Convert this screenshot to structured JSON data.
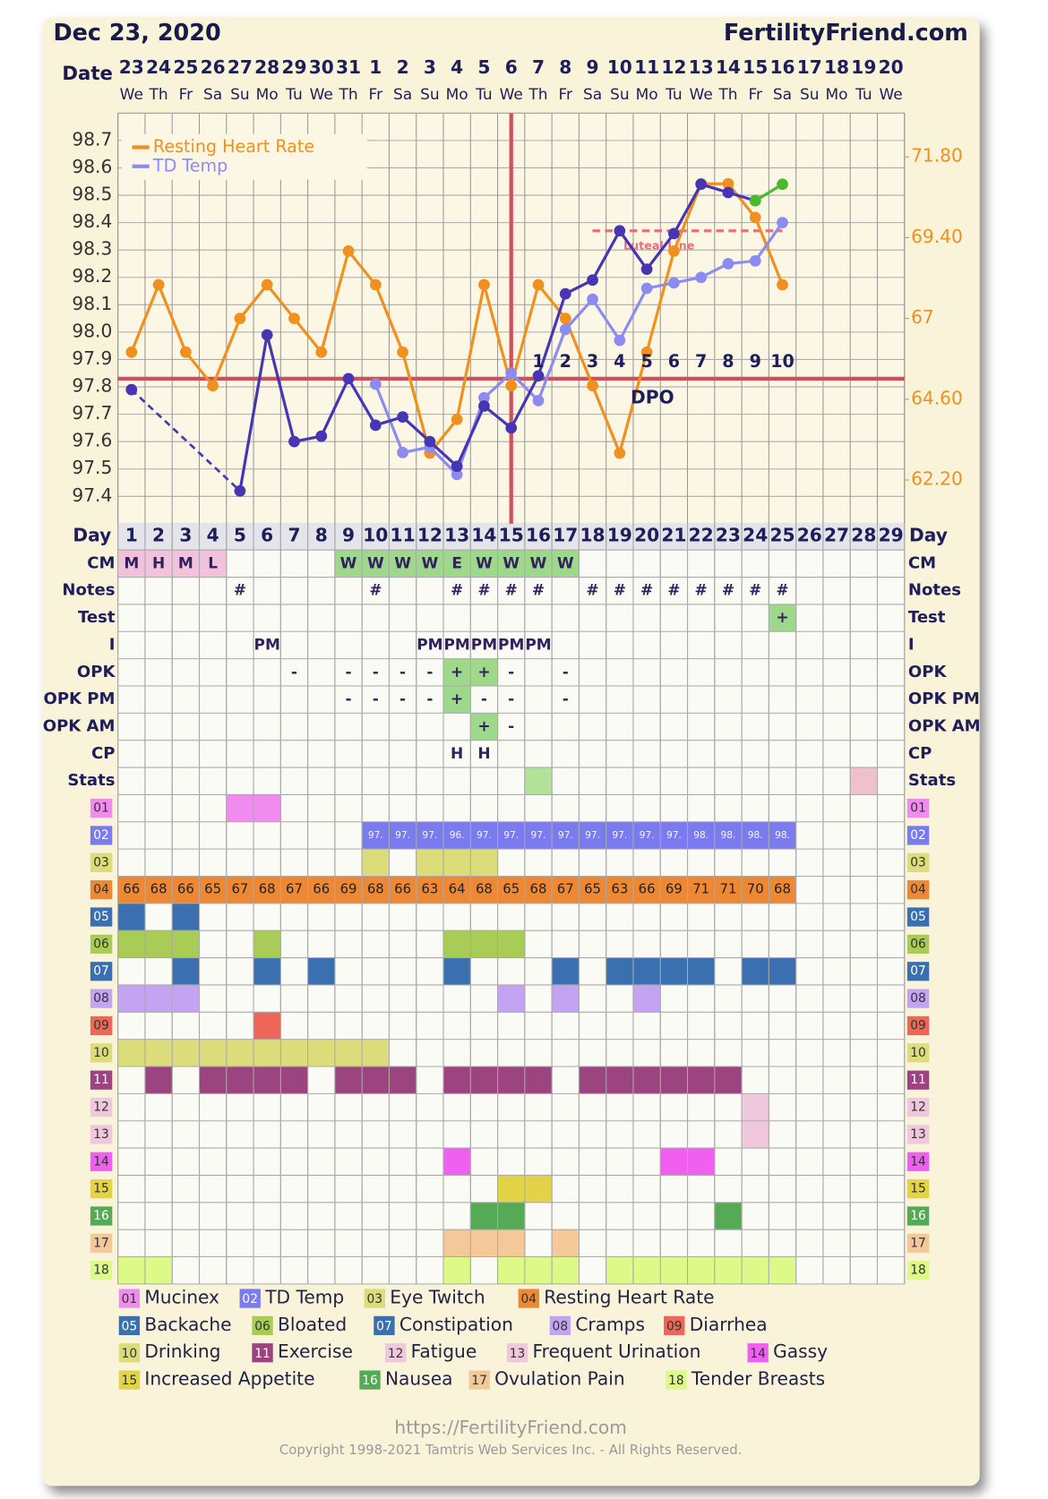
{
  "header": {
    "date": "Dec 23, 2020",
    "site": "FertilityFriend.com"
  },
  "chart_data": {
    "type": "line",
    "x_label": "Date",
    "dates": [
      "23",
      "24",
      "25",
      "26",
      "27",
      "28",
      "29",
      "30",
      "31",
      "1",
      "2",
      "3",
      "4",
      "5",
      "6",
      "7",
      "8",
      "9",
      "10",
      "11",
      "12",
      "13",
      "14",
      "15",
      "16",
      "17",
      "18",
      "19",
      "20"
    ],
    "weekdays": [
      "We",
      "Th",
      "Fr",
      "Sa",
      "Su",
      "Mo",
      "Tu",
      "We",
      "Th",
      "Fr",
      "Sa",
      "Su",
      "Mo",
      "Tu",
      "We",
      "Th",
      "Fr",
      "Sa",
      "Su",
      "Mo",
      "Tu",
      "We",
      "Th",
      "Fr",
      "Sa",
      "Su",
      "Mo",
      "Tu",
      "We"
    ],
    "day_label": "Day",
    "days": [
      1,
      2,
      3,
      4,
      5,
      6,
      7,
      8,
      9,
      10,
      11,
      12,
      13,
      14,
      15,
      16,
      17,
      18,
      19,
      20,
      21,
      22,
      23,
      24,
      25,
      26,
      27,
      28,
      29
    ],
    "ylim": [
      97.3,
      98.8
    ],
    "yticks": [
      97.4,
      97.5,
      97.6,
      97.7,
      97.8,
      97.9,
      {
        "value": 98,
        "label": "98.0"
      },
      98.1,
      98.2,
      98.3,
      98.4,
      98.5,
      98.6,
      98.7
    ],
    "y2lim": [
      60.9,
      73.1
    ],
    "y2ticks": [
      {
        "value": 71.8,
        "label": "71.80"
      },
      {
        "value": 69.4,
        "label": "69.40"
      },
      67,
      {
        "value": 64.6,
        "label": "64.60"
      },
      {
        "value": 62.2,
        "label": "62.20"
      }
    ],
    "grid": true,
    "legend": "top-left",
    "series": [
      {
        "name": "Resting Heart Rate",
        "color": "#f0901e",
        "axis": "y2",
        "values": [
          66,
          68,
          66,
          65,
          67,
          68,
          67,
          66,
          69,
          68,
          66,
          63,
          64,
          68,
          65,
          68,
          67,
          65,
          63,
          66,
          69,
          71,
          71,
          70,
          68,
          null,
          null,
          null,
          null
        ]
      },
      {
        "name": "TD Temp",
        "color": "#8c8cf0",
        "values": [
          null,
          null,
          null,
          null,
          null,
          null,
          null,
          null,
          null,
          97.81,
          97.56,
          97.58,
          97.48,
          97.76,
          97.85,
          97.75,
          98.01,
          98.12,
          97.97,
          98.16,
          98.18,
          98.2,
          98.25,
          98.26,
          98.4,
          null,
          null,
          null,
          null
        ]
      },
      {
        "color": "#4636b4",
        "values": [
          97.79,
          null,
          null,
          null,
          97.42,
          97.99,
          97.6,
          97.62,
          97.83,
          97.66,
          97.69,
          97.6,
          97.51,
          97.73,
          97.65,
          97.84,
          98.14,
          98.19,
          98.37,
          98.23,
          98.36,
          98.54,
          98.51,
          98.48,
          null,
          null,
          null,
          null,
          null
        ]
      },
      {
        "color": "#4cb82e",
        "values": [
          null,
          null,
          null,
          null,
          null,
          null,
          null,
          null,
          null,
          null,
          null,
          null,
          null,
          null,
          null,
          null,
          null,
          null,
          null,
          null,
          null,
          null,
          null,
          98.48,
          98.54,
          null,
          null,
          null,
          null
        ]
      }
    ],
    "coverline": 97.83,
    "coverline_color": "#d0505a",
    "ovulation_day": 15,
    "luteal_line": {
      "label": "Luteal Line",
      "value": 98.37,
      "days": [
        18,
        25
      ],
      "color": "#e8707c"
    },
    "dpo": {
      "label": "DPO",
      "days": [
        16,
        17,
        18,
        19,
        20,
        21,
        22,
        23,
        24,
        25
      ],
      "values": [
        1,
        2,
        3,
        4,
        5,
        6,
        7,
        8,
        9,
        10
      ]
    }
  },
  "table": {
    "rows": [
      {
        "label": "CM",
        "days": [
          1,
          2,
          3,
          4,
          9,
          10,
          11,
          12,
          13,
          14,
          15,
          16,
          17
        ],
        "texts": [
          "M",
          "H",
          "M",
          "L",
          "W",
          "W",
          "W",
          "W",
          "E",
          "W",
          "W",
          "W",
          "W"
        ],
        "fills": [
          {
            "color": "#f2c2dc",
            "days": [
              1,
              2,
              3,
              4
            ]
          },
          {
            "color": "#9ed88a",
            "days": [
              9,
              10,
              11,
              12,
              13,
              14,
              15,
              16,
              17
            ]
          }
        ]
      },
      {
        "label": "Notes",
        "days": [
          5,
          10,
          13,
          14,
          15,
          16,
          18,
          19,
          20,
          21,
          22,
          23,
          24,
          25
        ],
        "texts": [
          "#",
          "#",
          "#",
          "#",
          "#",
          "#",
          "#",
          "#",
          "#",
          "#",
          "#",
          "#",
          "#",
          "#"
        ]
      },
      {
        "label": "Test",
        "days": [
          25
        ],
        "texts": [
          "+"
        ],
        "fills": [
          {
            "color": "#9ed88a",
            "days": [
              25
            ]
          }
        ]
      },
      {
        "label": "I",
        "days": [
          6,
          12,
          13,
          14,
          15,
          16
        ],
        "texts": [
          "PM",
          "PM",
          "PM",
          "PM",
          "PM",
          "PM"
        ]
      },
      {
        "label": "OPK",
        "days": [
          7,
          9,
          10,
          11,
          12,
          13,
          14,
          15,
          17
        ],
        "texts": [
          "-",
          "-",
          "-",
          "-",
          "-",
          "+",
          "+",
          "-",
          "-"
        ],
        "fills": [
          {
            "color": "#9ed88a",
            "days": [
              13,
              14
            ]
          }
        ]
      },
      {
        "label": "OPK PM",
        "days": [
          9,
          10,
          11,
          12,
          13,
          14,
          15,
          17
        ],
        "texts": [
          "-",
          "-",
          "-",
          "-",
          "+",
          "-",
          "-",
          "-"
        ],
        "fills": [
          {
            "color": "#9ed88a",
            "days": [
              13
            ]
          }
        ]
      },
      {
        "label": "OPK AM",
        "days": [
          14,
          15
        ],
        "texts": [
          "+",
          "-"
        ],
        "fills": [
          {
            "color": "#9ed88a",
            "days": [
              14
            ]
          }
        ]
      },
      {
        "label": "CP",
        "days": [
          13,
          14
        ],
        "texts": [
          "H",
          "H"
        ]
      },
      {
        "label": "Stats",
        "fills": [
          {
            "color": "#b2e29a",
            "days": [
              16
            ]
          },
          {
            "color": "#f0c0cc",
            "days": [
              28
            ]
          }
        ]
      }
    ],
    "symptoms": [
      {
        "code": "01",
        "name": "Mucinex",
        "color": "#f08cf0",
        "days": [
          5,
          6
        ]
      },
      {
        "code": "02",
        "name": "TD Temp",
        "color": "#7b7bf0",
        "days": [
          10,
          11,
          12,
          13,
          14,
          15,
          16,
          17,
          18,
          19,
          20,
          21,
          22,
          23,
          24,
          25
        ],
        "texts": [
          "97.",
          "97.",
          "97.",
          "96.",
          "97.",
          "97.",
          "97.",
          "97.",
          "97.",
          "97.",
          "97.",
          "97.",
          "98.",
          "98.",
          "98.",
          "98."
        ]
      },
      {
        "code": "03",
        "name": "Eye Twitch",
        "color": "#dcdc7a",
        "days": [
          10,
          12,
          13,
          14
        ]
      },
      {
        "code": "04",
        "name": "Resting Heart Rate",
        "color": "#ee8833",
        "days": [
          1,
          2,
          3,
          4,
          5,
          6,
          7,
          8,
          9,
          10,
          11,
          12,
          13,
          14,
          15,
          16,
          17,
          18,
          19,
          20,
          21,
          22,
          23,
          24,
          25
        ]
      },
      {
        "code": "05",
        "name": "Backache",
        "color": "#3a6fb0",
        "days": [
          1,
          3
        ]
      },
      {
        "code": "06",
        "name": "Bloated",
        "color": "#a8cc55",
        "days": [
          1,
          2,
          3,
          6,
          13,
          14,
          15
        ]
      },
      {
        "code": "07",
        "name": "Constipation",
        "color": "#3a6fb0",
        "days": [
          3,
          6,
          8,
          13,
          17,
          19,
          20,
          21,
          22,
          24,
          25
        ]
      },
      {
        "code": "08",
        "name": "Cramps",
        "color": "#c4a4f2",
        "days": [
          1,
          2,
          3,
          15,
          17,
          20
        ]
      },
      {
        "code": "09",
        "name": "Diarrhea",
        "color": "#ee6658",
        "days": [
          6
        ]
      },
      {
        "code": "10",
        "name": "Drinking",
        "color": "#dcdc7a",
        "days": [
          1,
          2,
          3,
          4,
          5,
          6,
          7,
          8,
          9,
          10
        ]
      },
      {
        "code": "11",
        "name": "Exercise",
        "color": "#9c4480",
        "days": [
          2,
          4,
          5,
          6,
          7,
          9,
          10,
          11,
          13,
          14,
          15,
          16,
          18,
          19,
          20,
          21,
          22,
          23
        ]
      },
      {
        "code": "12",
        "name": "Fatigue",
        "color": "#f0c8dd",
        "days": [
          24
        ]
      },
      {
        "code": "13",
        "name": "Frequent Urination",
        "color": "#f0c8dd",
        "days": [
          24
        ]
      },
      {
        "code": "14",
        "name": "Gassy",
        "color": "#f060f0",
        "days": [
          13,
          21,
          22
        ]
      },
      {
        "code": "15",
        "name": "Increased Appetite",
        "color": "#e2d444",
        "days": [
          15,
          16
        ]
      },
      {
        "code": "16",
        "name": "Nausea",
        "color": "#55aa55",
        "days": [
          14,
          15,
          23
        ]
      },
      {
        "code": "17",
        "name": "Ovulation Pain",
        "color": "#f5c89a",
        "days": [
          13,
          14,
          15,
          17
        ]
      },
      {
        "code": "18",
        "name": "Tender Breasts",
        "color": "#ddfa88",
        "days": [
          1,
          2,
          13,
          15,
          16,
          17,
          19,
          20,
          21,
          22,
          23,
          24,
          25
        ]
      }
    ]
  },
  "footer": {
    "url": "https://FertilityFriend.com",
    "copyright": "Copyright 1998-2021 Tamtris Web Services Inc. - All Rights Reserved."
  }
}
